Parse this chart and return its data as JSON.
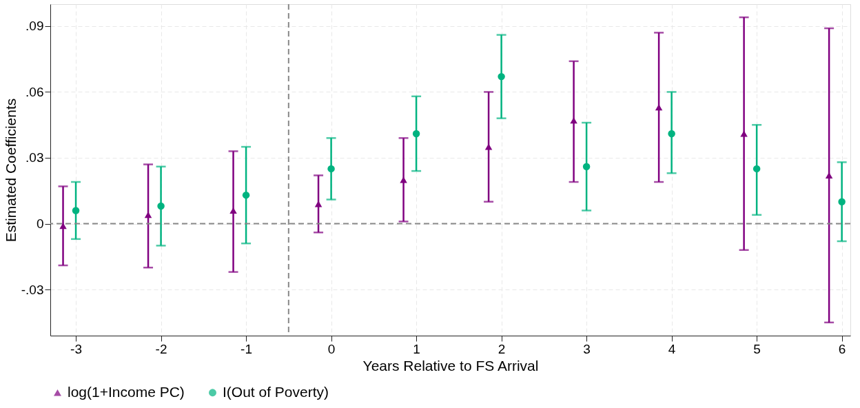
{
  "chart_data": {
    "type": "scatter",
    "xlabel": "Years Relative to FS Arrival",
    "ylabel": "Estimated Coefficients",
    "series": [
      {
        "name": "log(1+Income PC)",
        "color": "#800080",
        "marker": "triangle",
        "x": [
          -3.15,
          -2.15,
          -1.15,
          -0.15,
          0.85,
          1.85,
          2.85,
          3.85,
          4.85,
          5.85
        ],
        "values": [
          -0.001,
          0.004,
          0.006,
          0.009,
          0.02,
          0.035,
          0.047,
          0.053,
          0.041,
          0.022
        ],
        "errors": [
          [
            -0.019,
            0.017
          ],
          [
            -0.02,
            0.027
          ],
          [
            -0.022,
            0.033
          ],
          [
            -0.004,
            0.022
          ],
          [
            0.001,
            0.039
          ],
          [
            0.01,
            0.06
          ],
          [
            0.019,
            0.074
          ],
          [
            0.019,
            0.087
          ],
          [
            -0.012,
            0.094
          ],
          [
            -0.045,
            0.089
          ]
        ]
      },
      {
        "name": "I(Out of Poverty)",
        "color": "#00b380",
        "marker": "circle",
        "x": [
          -3,
          -2,
          -1,
          0,
          1,
          2,
          3,
          4,
          5,
          6
        ],
        "values": [
          0.006,
          0.008,
          0.013,
          0.025,
          0.041,
          0.067,
          0.026,
          0.041,
          0.025,
          0.01
        ],
        "errors": [
          [
            -0.007,
            0.019
          ],
          [
            -0.01,
            0.026
          ],
          [
            -0.009,
            0.035
          ],
          [
            0.011,
            0.039
          ],
          [
            0.024,
            0.058
          ],
          [
            0.048,
            0.086
          ],
          [
            0.006,
            0.046
          ],
          [
            0.023,
            0.06
          ],
          [
            0.004,
            0.045
          ],
          [
            -0.008,
            0.028
          ]
        ]
      }
    ],
    "xlim": [
      -3.3,
      6.1
    ],
    "xticks": [
      -3,
      -2,
      -1,
      0,
      1,
      2,
      3,
      4,
      5,
      6
    ],
    "ylim": [
      -0.051,
      0.1
    ],
    "yticks": [
      {
        "value": -0.03,
        "label": "-.03"
      },
      {
        "value": 0,
        "label": "0"
      },
      {
        "value": 0.03,
        "label": ".03"
      },
      {
        "value": 0.06,
        "label": ".06"
      },
      {
        "value": 0.09,
        "label": ".09"
      }
    ],
    "ref_lines": [
      {
        "axis": "y",
        "value": 0,
        "color": "#888888",
        "line_style": "dashed"
      },
      {
        "axis": "x",
        "value": -0.5,
        "color": "#888888",
        "line_style": "dashed"
      }
    ],
    "grid": true,
    "legend": "bottom"
  }
}
